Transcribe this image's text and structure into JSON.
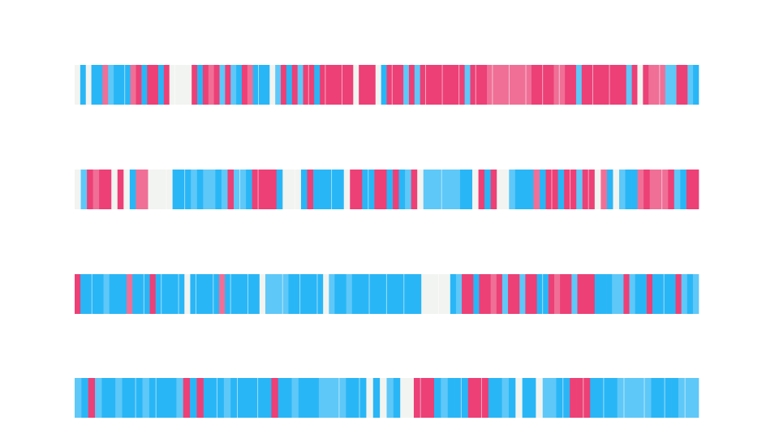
{
  "chart_data": {
    "type": "heatmap",
    "title": "",
    "xlabel": "",
    "ylabel": "",
    "grid": false,
    "legend": "none",
    "colors": {
      "neg_strong": "#29b6f6",
      "neg_light": "#5ec8f8",
      "neutral": "#f2f4f1",
      "pos_light": "#f06f97",
      "pos_strong": "#ec4077"
    },
    "rows": [
      {
        "values": [
          0,
          -2,
          0,
          -2,
          -2,
          1,
          -1,
          -2,
          -2,
          -2,
          1,
          2,
          -2,
          2,
          2,
          -2,
          2,
          0,
          0,
          0,
          0,
          2,
          -2,
          2,
          1,
          2,
          -1,
          2,
          -1,
          -2,
          2,
          1,
          -2,
          -2,
          -2,
          0,
          -1,
          2,
          -2,
          2,
          -1,
          2,
          2,
          -2,
          2,
          2,
          2,
          2,
          2,
          2,
          0,
          2,
          2,
          2,
          0,
          -2,
          2,
          2,
          2,
          -1,
          2,
          -1,
          2,
          2,
          2,
          2,
          2,
          2,
          2,
          2,
          -1,
          2,
          2,
          2,
          1,
          1,
          1,
          1,
          1,
          1,
          1,
          1,
          2,
          2,
          2,
          2,
          1,
          1,
          2,
          2,
          -1,
          2,
          2,
          2,
          2,
          2,
          2,
          2,
          2,
          -1,
          2,
          0,
          2,
          1,
          1,
          1,
          -1,
          -1,
          2,
          2,
          -1,
          -2
        ]
      },
      {
        "values": [
          0,
          -1,
          2,
          1,
          2,
          2,
          0,
          2,
          0,
          -2,
          1,
          1,
          0,
          0,
          0,
          0,
          -2,
          -2,
          -2,
          -1,
          -2,
          -1,
          -1,
          -2,
          -1,
          2,
          -1,
          -1,
          -2,
          2,
          2,
          2,
          2,
          -2,
          0,
          0,
          0,
          -2,
          2,
          -2,
          -2,
          -2,
          -2,
          -2,
          0,
          2,
          2,
          -2,
          -2,
          2,
          2,
          -2,
          2,
          -2,
          -1,
          2,
          0,
          -1,
          -1,
          -1,
          -1,
          -1,
          -1,
          -2,
          -2,
          0,
          2,
          -2,
          2,
          0,
          0,
          -1,
          -2,
          -2,
          -2,
          1,
          -2,
          2,
          2,
          -2,
          2,
          2,
          -1,
          2,
          2,
          0,
          1,
          -2,
          0,
          -1,
          -2,
          -2,
          1,
          2,
          1,
          1,
          1,
          2,
          -1,
          -2,
          2,
          2
        ]
      },
      {
        "values": [
          2,
          -2,
          -2,
          -2,
          -2,
          -1,
          -2,
          -2,
          -2,
          1,
          -2,
          -2,
          -2,
          2,
          -2,
          -2,
          -2,
          -2,
          -2,
          0,
          -2,
          -2,
          -2,
          -2,
          -2,
          1,
          -2,
          -2,
          -2,
          -2,
          -2,
          -2,
          0,
          -1,
          -1,
          -1,
          -1,
          -2,
          -2,
          -2,
          -2,
          -2,
          -2,
          0,
          -1,
          -2,
          -2,
          -1,
          -2,
          -2,
          -2,
          -2,
          -2,
          -2,
          -2,
          -2,
          -2,
          -2,
          -2,
          -2,
          0,
          0,
          0,
          0,
          0,
          -2,
          -1,
          2,
          2,
          -2,
          2,
          2,
          1,
          2,
          -1,
          2,
          2,
          -1,
          2,
          2,
          -2,
          -2,
          2,
          1,
          2,
          2,
          -1,
          2,
          2,
          2,
          -2,
          -2,
          -2,
          -1,
          -1,
          2,
          -1,
          -2,
          -2,
          2,
          -2,
          -2,
          -2,
          -2,
          2,
          -1,
          -2,
          -1
        ]
      },
      {
        "values": [
          -1,
          -2,
          2,
          -1,
          -2,
          -2,
          -1,
          -2,
          -2,
          -2,
          -1,
          -2,
          -2,
          -2,
          -2,
          -1,
          2,
          -2,
          2,
          -2,
          -2,
          -2,
          -1,
          -2,
          -2,
          -2,
          -2,
          -2,
          -2,
          2,
          -2,
          -2,
          -1,
          -2,
          -2,
          -2,
          -1,
          -1,
          -1,
          -1,
          -2,
          -2,
          -2,
          0,
          -2,
          0,
          -1,
          -2,
          0,
          0,
          2,
          2,
          2,
          -2,
          -1,
          -2,
          -2,
          -2,
          2,
          2,
          2,
          -2,
          -2,
          -1,
          -2,
          0,
          -2,
          -2,
          0,
          -1,
          -1,
          -2,
          -2,
          2,
          2,
          2,
          -2,
          -2,
          -2,
          -2,
          -1,
          -1,
          -1,
          -1,
          -1,
          -2,
          -2,
          -2,
          -2,
          -1,
          -1,
          -1
        ]
      }
    ]
  }
}
